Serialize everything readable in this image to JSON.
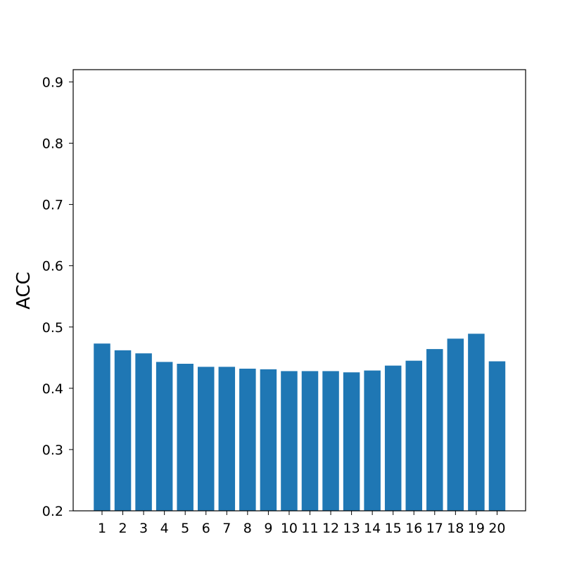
{
  "chart_data": {
    "type": "bar",
    "categories": [
      "1",
      "2",
      "3",
      "4",
      "5",
      "6",
      "7",
      "8",
      "9",
      "10",
      "11",
      "12",
      "13",
      "14",
      "15",
      "16",
      "17",
      "18",
      "19",
      "20"
    ],
    "values": [
      0.473,
      0.462,
      0.457,
      0.443,
      0.44,
      0.435,
      0.435,
      0.432,
      0.431,
      0.428,
      0.428,
      0.428,
      0.426,
      0.429,
      0.437,
      0.445,
      0.464,
      0.481,
      0.489,
      0.444
    ],
    "title": "",
    "xlabel": "",
    "ylabel": "ACC",
    "ylim": [
      0.2,
      0.92
    ],
    "yticks": [
      "0.2",
      "0.3",
      "0.4",
      "0.5",
      "0.6",
      "0.7",
      "0.8",
      "0.9"
    ],
    "grid": false,
    "bar_color": "#1f77b4"
  }
}
